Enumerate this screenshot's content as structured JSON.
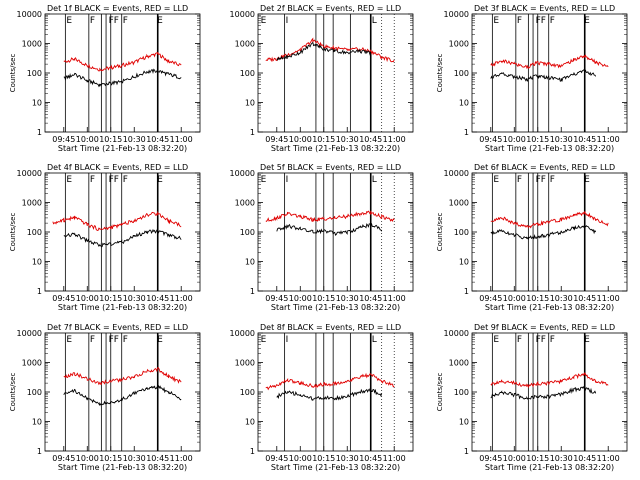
{
  "figure": {
    "x_axis_title": "Start Time (21-Feb-13 08:32:20)",
    "y_axis_title": "Counts/sec",
    "y_ticks": [
      "1",
      "10",
      "100",
      "1000",
      "10000"
    ],
    "x_ticks": [
      "09:45",
      "10:00",
      "10:15",
      "10:30",
      "10:45",
      "11:00"
    ],
    "colors": {
      "events": "#000000",
      "lld": "#e00000",
      "axes": "#000000"
    }
  },
  "chart_data": [
    {
      "type": "line",
      "title": "Det 1f BLACK = Events, RED = LLD",
      "xlabel": "Start Time (21-Feb-13 08:32:20)",
      "ylabel": "Counts/sec",
      "yscale": "log",
      "ylim": [
        1,
        10000
      ],
      "xlim": [
        "09:33",
        "11:12"
      ],
      "x": [
        "09:38",
        "09:45",
        "09:52",
        "10:00",
        "10:08",
        "10:15",
        "10:22",
        "10:30",
        "10:38",
        "10:45",
        "10:52",
        "11:00"
      ],
      "series": [
        {
          "name": "LLD",
          "color": "#e00000",
          "values": [
            null,
            240,
            300,
            180,
            130,
            150,
            180,
            230,
            360,
            450,
            250,
            180
          ]
        },
        {
          "name": "Events",
          "color": "#000000",
          "values": [
            null,
            65,
            90,
            55,
            40,
            45,
            50,
            75,
            110,
            120,
            90,
            70
          ]
        }
      ],
      "annotations": [
        {
          "x": "09:46",
          "text": "E"
        },
        {
          "x": "10:01",
          "text": "F"
        },
        {
          "x": "10:13",
          "text": "FF"
        },
        {
          "x": "10:22",
          "text": "F"
        },
        {
          "x": "10:44",
          "text": "E"
        }
      ]
    },
    {
      "type": "line",
      "title": "Det 2f BLACK = Events, RED = LLD",
      "xlabel": "Start Time (21-Feb-13 08:32:20)",
      "ylabel": "",
      "yscale": "log",
      "ylim": [
        1,
        10000
      ],
      "xlim": [
        "09:33",
        "11:12"
      ],
      "x": [
        "09:38",
        "09:45",
        "09:52",
        "10:00",
        "10:08",
        "10:15",
        "10:22",
        "10:30",
        "10:38",
        "10:45",
        "10:52",
        "11:00"
      ],
      "series": [
        {
          "name": "LLD",
          "color": "#e00000",
          "values": [
            280,
            300,
            420,
            600,
            1300,
            800,
            700,
            600,
            650,
            550,
            350,
            250
          ]
        },
        {
          "name": "Events",
          "color": "#000000",
          "values": [
            null,
            280,
            350,
            500,
            1000,
            650,
            550,
            500,
            550,
            480,
            null,
            null
          ]
        }
      ],
      "annotations": [
        {
          "x": "09:34",
          "text": "E"
        },
        {
          "x": "09:50",
          "text": "I"
        },
        {
          "x": "10:45",
          "text": "L"
        }
      ]
    },
    {
      "type": "line",
      "title": "Det 3f BLACK = Events, RED = LLD",
      "xlabel": "Start Time (21-Feb-13 08:32:20)",
      "ylabel": "Counts/sec",
      "yscale": "log",
      "ylim": [
        1,
        10000
      ],
      "xlim": [
        "09:33",
        "11:12"
      ],
      "x": [
        "09:38",
        "09:45",
        "09:52",
        "10:00",
        "10:08",
        "10:15",
        "10:22",
        "10:30",
        "10:38",
        "10:45",
        "10:52",
        "11:00"
      ],
      "series": [
        {
          "name": "LLD",
          "color": "#e00000",
          "values": [
            null,
            180,
            260,
            200,
            160,
            220,
            200,
            170,
            280,
            380,
            230,
            170
          ]
        },
        {
          "name": "Events",
          "color": "#000000",
          "values": [
            null,
            70,
            100,
            75,
            60,
            80,
            70,
            60,
            90,
            120,
            80,
            null
          ]
        }
      ],
      "annotations": [
        {
          "x": "09:46",
          "text": "E"
        },
        {
          "x": "10:01",
          "text": "F"
        },
        {
          "x": "10:13",
          "text": "FF"
        },
        {
          "x": "10:22",
          "text": "F"
        },
        {
          "x": "10:44",
          "text": "E"
        }
      ]
    },
    {
      "type": "line",
      "title": "Det 4f BLACK = Events, RED = LLD",
      "xlabel": "Start Time (21-Feb-13 08:32:20)",
      "ylabel": "Counts/sec",
      "yscale": "log",
      "ylim": [
        1,
        10000
      ],
      "xlim": [
        "09:33",
        "11:12"
      ],
      "x": [
        "09:38",
        "09:45",
        "09:52",
        "10:00",
        "10:08",
        "10:15",
        "10:22",
        "10:30",
        "10:38",
        "10:45",
        "10:52",
        "11:00"
      ],
      "series": [
        {
          "name": "LLD",
          "color": "#e00000",
          "values": [
            200,
            250,
            310,
            180,
            120,
            140,
            180,
            240,
            380,
            430,
            240,
            170
          ]
        },
        {
          "name": "Events",
          "color": "#000000",
          "values": [
            null,
            70,
            85,
            50,
            35,
            40,
            45,
            70,
            100,
            110,
            80,
            60
          ]
        }
      ],
      "annotations": [
        {
          "x": "09:46",
          "text": "E"
        },
        {
          "x": "10:01",
          "text": "F"
        },
        {
          "x": "10:13",
          "text": "FF"
        },
        {
          "x": "10:22",
          "text": "F"
        },
        {
          "x": "10:44",
          "text": "E"
        }
      ]
    },
    {
      "type": "line",
      "title": "Det 5f BLACK = Events, RED = LLD",
      "xlabel": "Start Time (21-Feb-13 08:32:20)",
      "ylabel": "",
      "yscale": "log",
      "ylim": [
        1,
        10000
      ],
      "xlim": [
        "09:33",
        "11:12"
      ],
      "x": [
        "09:38",
        "09:45",
        "09:52",
        "10:00",
        "10:08",
        "10:15",
        "10:22",
        "10:30",
        "10:38",
        "10:45",
        "10:52",
        "11:00"
      ],
      "series": [
        {
          "name": "LLD",
          "color": "#e00000",
          "values": [
            240,
            300,
            420,
            330,
            260,
            280,
            300,
            340,
            420,
            460,
            330,
            250
          ]
        },
        {
          "name": "Events",
          "color": "#000000",
          "values": [
            null,
            120,
            160,
            130,
            100,
            110,
            90,
            95,
            140,
            180,
            120,
            null
          ]
        }
      ],
      "annotations": [
        {
          "x": "09:34",
          "text": "E"
        },
        {
          "x": "09:50",
          "text": "I"
        },
        {
          "x": "10:45",
          "text": "L"
        }
      ]
    },
    {
      "type": "line",
      "title": "Det 6f BLACK = Events, RED = LLD",
      "xlabel": "Start Time (21-Feb-13 08:32:20)",
      "ylabel": "Counts/sec",
      "yscale": "log",
      "ylim": [
        1,
        10000
      ],
      "xlim": [
        "09:33",
        "11:12"
      ],
      "x": [
        "09:38",
        "09:45",
        "09:52",
        "10:00",
        "10:08",
        "10:15",
        "10:22",
        "10:30",
        "10:38",
        "10:45",
        "10:52",
        "11:00"
      ],
      "series": [
        {
          "name": "LLD",
          "color": "#e00000",
          "values": [
            null,
            220,
            300,
            200,
            150,
            180,
            220,
            260,
            360,
            450,
            260,
            180
          ]
        },
        {
          "name": "Events",
          "color": "#000000",
          "values": [
            null,
            90,
            110,
            80,
            60,
            70,
            80,
            100,
            140,
            160,
            100,
            null
          ]
        }
      ],
      "annotations": [
        {
          "x": "09:46",
          "text": "E"
        },
        {
          "x": "10:01",
          "text": "F"
        },
        {
          "x": "10:13",
          "text": "FF"
        },
        {
          "x": "10:22",
          "text": "F"
        },
        {
          "x": "10:44",
          "text": "E"
        }
      ]
    },
    {
      "type": "line",
      "title": "Det 7f BLACK = Events, RED = LLD",
      "xlabel": "Start Time (21-Feb-13 08:32:20)",
      "ylabel": "Counts/sec",
      "yscale": "log",
      "ylim": [
        1,
        10000
      ],
      "xlim": [
        "09:33",
        "11:12"
      ],
      "x": [
        "09:38",
        "09:45",
        "09:52",
        "10:00",
        "10:08",
        "10:15",
        "10:22",
        "10:30",
        "10:38",
        "10:45",
        "10:52",
        "11:00"
      ],
      "series": [
        {
          "name": "LLD",
          "color": "#e00000",
          "values": [
            null,
            300,
            420,
            280,
            200,
            230,
            260,
            330,
            500,
            600,
            330,
            220
          ]
        },
        {
          "name": "Events",
          "color": "#000000",
          "values": [
            null,
            80,
            110,
            60,
            40,
            45,
            55,
            90,
            130,
            150,
            100,
            60
          ]
        }
      ],
      "annotations": [
        {
          "x": "09:46",
          "text": "E"
        },
        {
          "x": "10:01",
          "text": "F"
        },
        {
          "x": "10:13",
          "text": "FF"
        },
        {
          "x": "10:22",
          "text": "F"
        },
        {
          "x": "10:44",
          "text": "E"
        }
      ]
    },
    {
      "type": "line",
      "title": "Det 8f BLACK = Events, RED = LLD",
      "xlabel": "Start Time (21-Feb-13 08:32:20)",
      "ylabel": "",
      "yscale": "log",
      "ylim": [
        1,
        10000
      ],
      "xlim": [
        "09:33",
        "11:12"
      ],
      "x": [
        "09:38",
        "09:45",
        "09:52",
        "10:00",
        "10:08",
        "10:15",
        "10:22",
        "10:30",
        "10:38",
        "10:45",
        "10:52",
        "11:00"
      ],
      "series": [
        {
          "name": "LLD",
          "color": "#e00000",
          "values": [
            130,
            170,
            250,
            200,
            160,
            180,
            190,
            230,
            320,
            380,
            240,
            160
          ]
        },
        {
          "name": "Events",
          "color": "#000000",
          "values": [
            null,
            70,
            100,
            80,
            60,
            65,
            60,
            70,
            100,
            120,
            80,
            null
          ]
        }
      ],
      "annotations": [
        {
          "x": "09:34",
          "text": "E"
        },
        {
          "x": "09:50",
          "text": "I"
        },
        {
          "x": "10:45",
          "text": "L"
        }
      ]
    },
    {
      "type": "line",
      "title": "Det 9f BLACK = Events, RED = LLD",
      "xlabel": "Start Time (21-Feb-13 08:32:20)",
      "ylabel": "Counts/sec",
      "yscale": "log",
      "ylim": [
        1,
        10000
      ],
      "xlim": [
        "09:33",
        "11:12"
      ],
      "x": [
        "09:38",
        "09:45",
        "09:52",
        "10:00",
        "10:08",
        "10:15",
        "10:22",
        "10:30",
        "10:38",
        "10:45",
        "10:52",
        "11:00"
      ],
      "series": [
        {
          "name": "LLD",
          "color": "#e00000",
          "values": [
            null,
            180,
            240,
            200,
            160,
            190,
            200,
            230,
            320,
            400,
            240,
            170
          ]
        },
        {
          "name": "Events",
          "color": "#000000",
          "values": [
            null,
            70,
            100,
            80,
            60,
            70,
            70,
            85,
            120,
            140,
            90,
            null
          ]
        }
      ],
      "annotations": [
        {
          "x": "09:46",
          "text": "E"
        },
        {
          "x": "10:01",
          "text": "F"
        },
        {
          "x": "10:13",
          "text": "FF"
        },
        {
          "x": "10:22",
          "text": "F"
        },
        {
          "x": "10:44",
          "text": "E"
        }
      ]
    }
  ]
}
